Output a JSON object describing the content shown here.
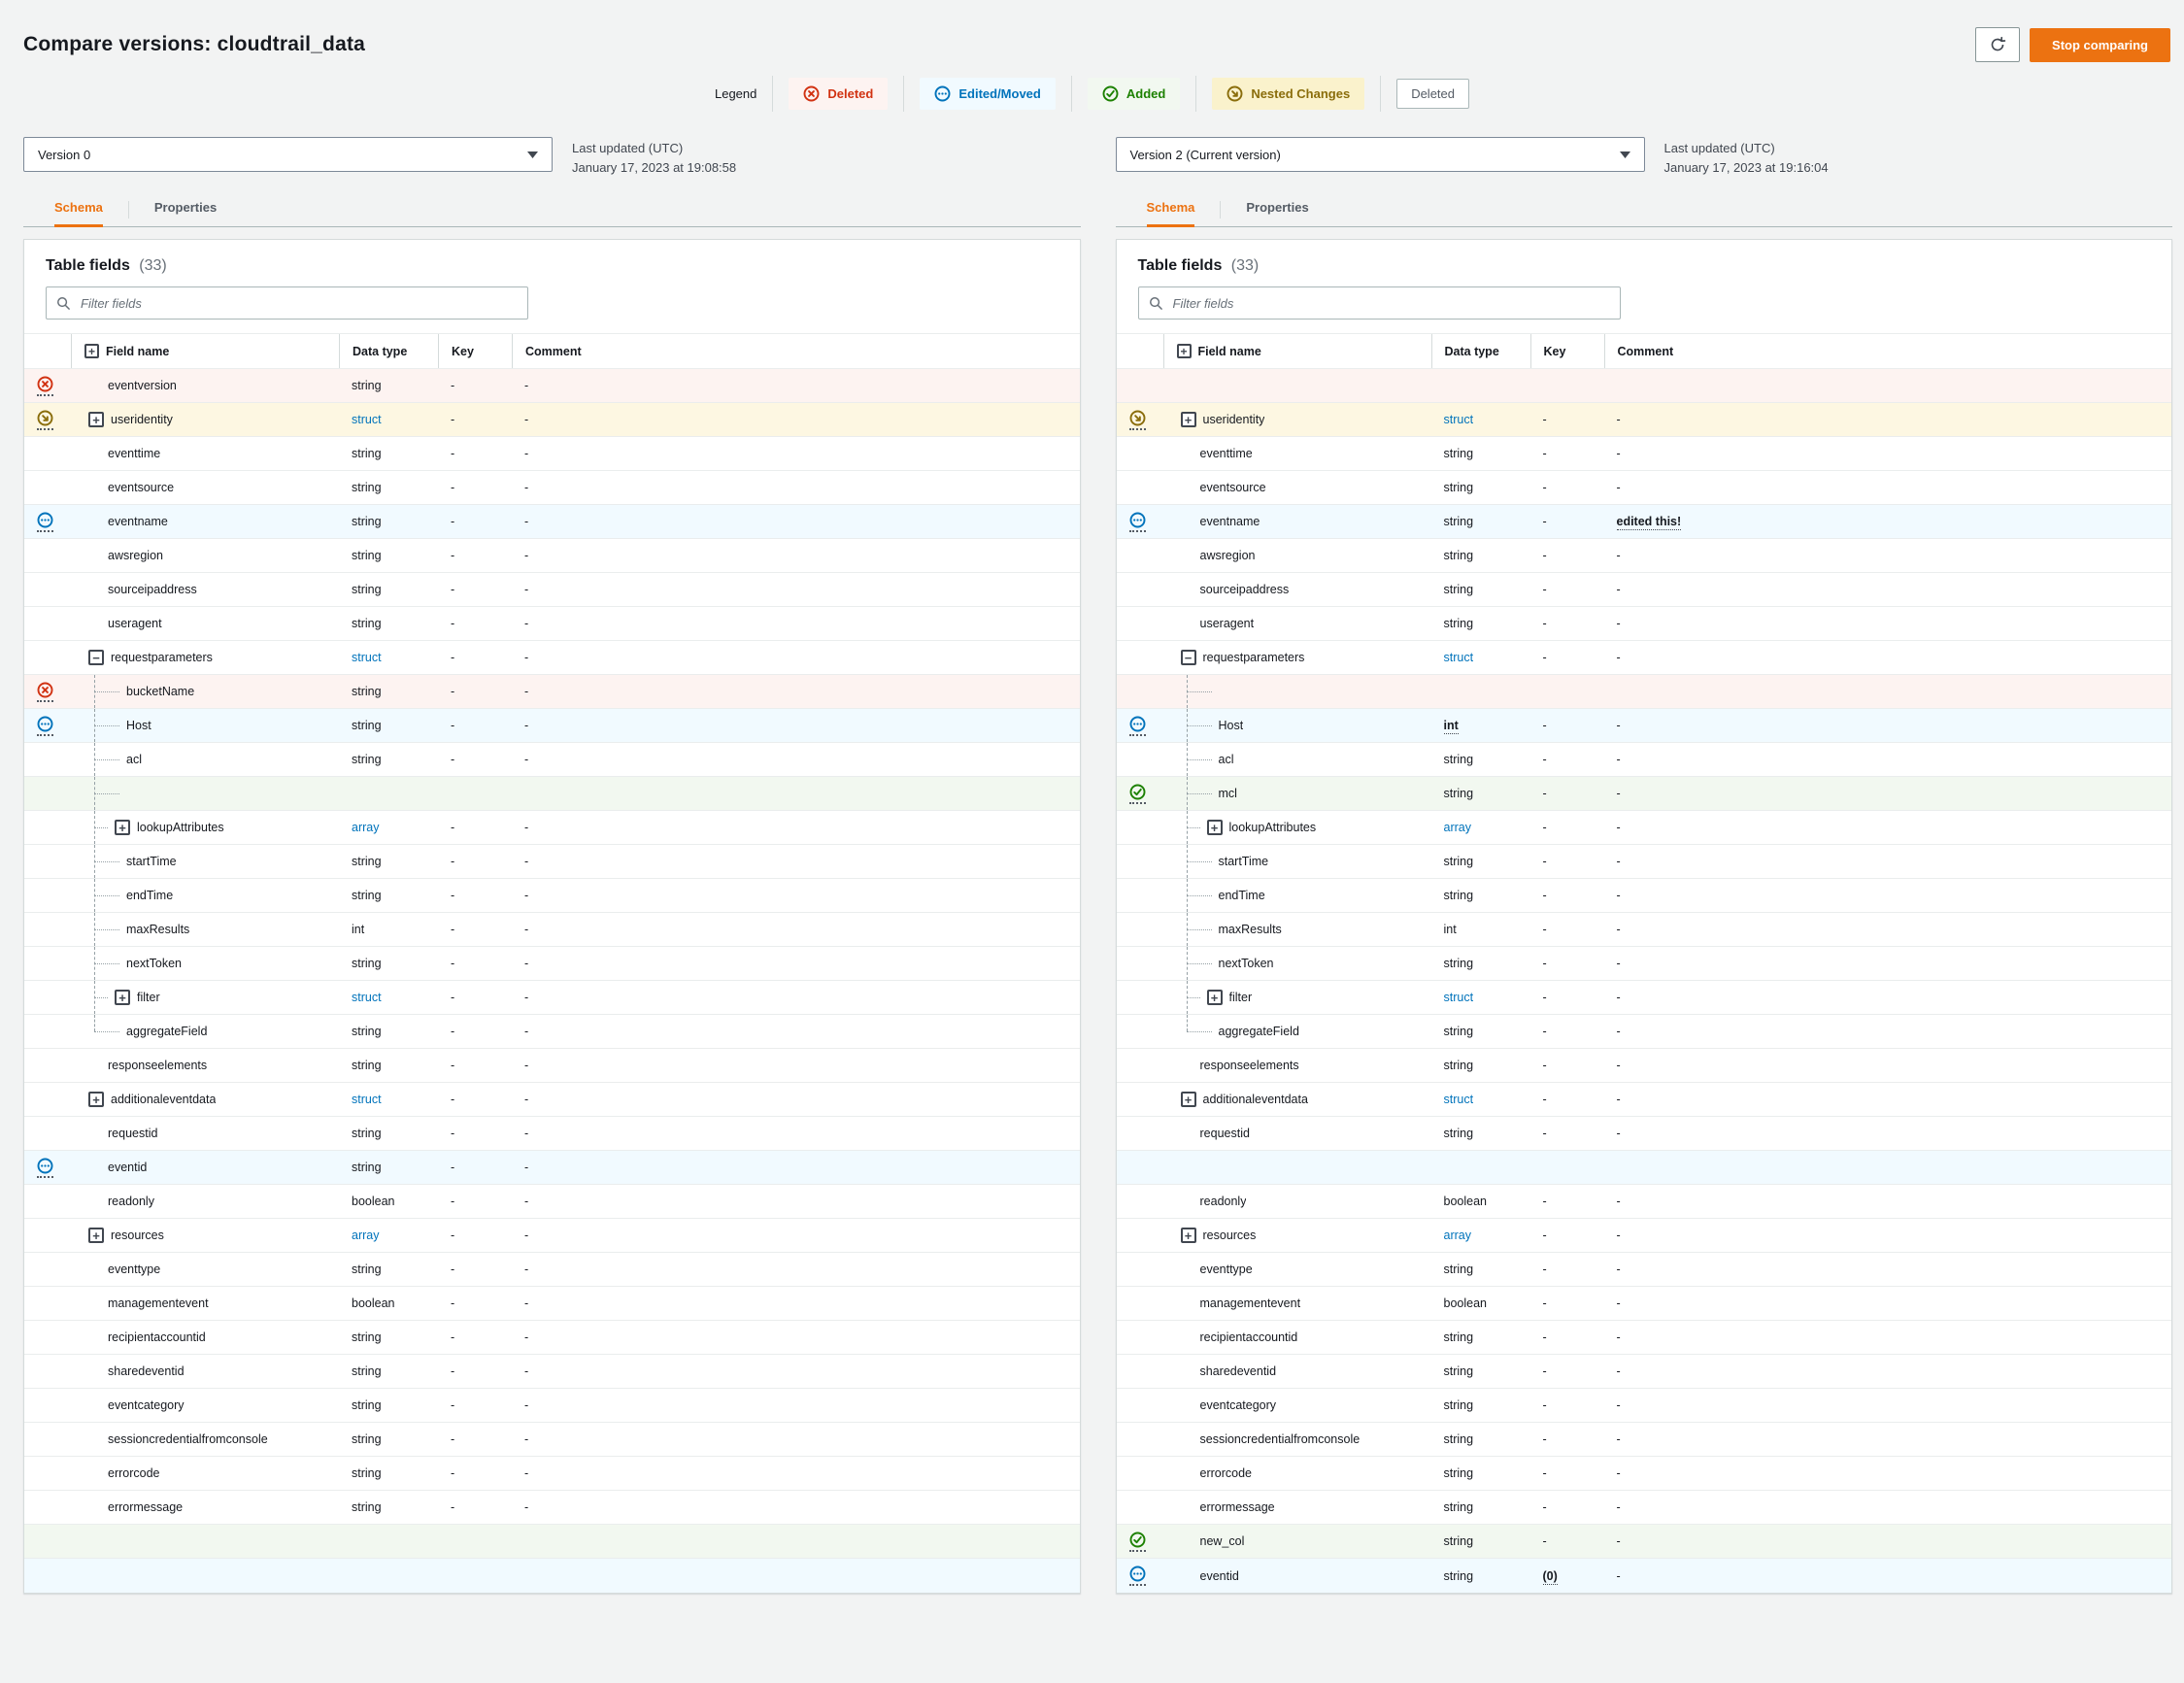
{
  "page": {
    "title": "Compare versions: cloudtrail_data"
  },
  "toolbar": {
    "stop_comparing_label": "Stop comparing"
  },
  "legend": {
    "label": "Legend",
    "items": [
      {
        "id": "deleted",
        "icon": "deleted",
        "label": "Deleted"
      },
      {
        "id": "edited",
        "icon": "edited",
        "label": "Edited/Moved"
      },
      {
        "id": "added",
        "icon": "added",
        "label": "Added"
      },
      {
        "id": "nested",
        "icon": "nested",
        "label": "Nested Changes"
      },
      {
        "id": "deleted-plain",
        "label": "Deleted"
      }
    ]
  },
  "colors": {
    "accent_orange": "#ec7211",
    "deleted": "#d13212",
    "deleted_bg": "#fdf3f1",
    "edited": "#0073bb",
    "edited_bg": "#f1faff",
    "added": "#1d8102",
    "added_bg": "#f2f8f0",
    "nested": "#8a6d0b",
    "nested_bg": "#fdf7e2",
    "link": "#0073bb"
  },
  "columns": {
    "field_name": "Field name",
    "data_type": "Data type",
    "key": "Key",
    "comment": "Comment"
  },
  "panels": [
    {
      "version_label": "Version 0",
      "last_updated_label": "Last updated (UTC)",
      "last_updated_value": "January 17, 2023 at 19:08:58",
      "tabs": [
        {
          "label": "Schema",
          "active": true
        },
        {
          "label": "Properties",
          "active": false
        }
      ],
      "table_title": "Table fields",
      "table_count": "(33)",
      "filter_placeholder": "Filter fields",
      "rows": [
        {
          "name": "eventversion",
          "type": "string",
          "key": "-",
          "comment": "-",
          "status": "deleted",
          "bg": "deleted"
        },
        {
          "name": "useridentity",
          "type": "struct",
          "type_link": true,
          "key": "-",
          "comment": "-",
          "status": "nested",
          "bg": "nested",
          "expander": "plus"
        },
        {
          "name": "eventtime",
          "type": "string",
          "key": "-",
          "comment": "-"
        },
        {
          "name": "eventsource",
          "type": "string",
          "key": "-",
          "comment": "-"
        },
        {
          "name": "eventname",
          "type": "string",
          "key": "-",
          "comment": "-",
          "status": "edited",
          "bg": "edited"
        },
        {
          "name": "awsregion",
          "type": "string",
          "key": "-",
          "comment": "-"
        },
        {
          "name": "sourceipaddress",
          "type": "string",
          "key": "-",
          "comment": "-"
        },
        {
          "name": "useragent",
          "type": "string",
          "key": "-",
          "comment": "-"
        },
        {
          "name": "requestparameters",
          "type": "struct",
          "type_link": true,
          "key": "-",
          "comment": "-",
          "expander": "minus"
        },
        {
          "name": "bucketName",
          "type": "string",
          "key": "-",
          "comment": "-",
          "status": "deleted",
          "bg": "deleted",
          "child": true,
          "tree": true
        },
        {
          "name": "Host",
          "type": "string",
          "key": "-",
          "comment": "-",
          "status": "edited",
          "bg": "edited",
          "child": true,
          "tree": true
        },
        {
          "name": "acl",
          "type": "string",
          "key": "-",
          "comment": "-",
          "child": true,
          "tree": true
        },
        {
          "placeholder": true,
          "bg": "added",
          "child": true,
          "tree": true
        },
        {
          "name": "lookupAttributes",
          "type": "array",
          "type_link": true,
          "key": "-",
          "comment": "-",
          "child": true,
          "tree": true,
          "expander": "plus"
        },
        {
          "name": "startTime",
          "type": "string",
          "key": "-",
          "comment": "-",
          "child": true,
          "tree": true
        },
        {
          "name": "endTime",
          "type": "string",
          "key": "-",
          "comment": "-",
          "child": true,
          "tree": true
        },
        {
          "name": "maxResults",
          "type": "int",
          "key": "-",
          "comment": "-",
          "child": true,
          "tree": true
        },
        {
          "name": "nextToken",
          "type": "string",
          "key": "-",
          "comment": "-",
          "child": true,
          "tree": true
        },
        {
          "name": "filter",
          "type": "struct",
          "type_link": true,
          "key": "-",
          "comment": "-",
          "child": true,
          "tree": true,
          "expander": "plus"
        },
        {
          "name": "aggregateField",
          "type": "string",
          "key": "-",
          "comment": "-",
          "child": true,
          "tree": true,
          "tree_last": true
        },
        {
          "name": "responseelements",
          "type": "string",
          "key": "-",
          "comment": "-"
        },
        {
          "name": "additionaleventdata",
          "type": "struct",
          "type_link": true,
          "key": "-",
          "comment": "-",
          "expander": "plus"
        },
        {
          "name": "requestid",
          "type": "string",
          "key": "-",
          "comment": "-"
        },
        {
          "name": "eventid",
          "type": "string",
          "key": "-",
          "comment": "-",
          "status": "edited",
          "bg": "edited"
        },
        {
          "name": "readonly",
          "type": "boolean",
          "key": "-",
          "comment": "-"
        },
        {
          "name": "resources",
          "type": "array",
          "type_link": true,
          "key": "-",
          "comment": "-",
          "expander": "plus"
        },
        {
          "name": "eventtype",
          "type": "string",
          "key": "-",
          "comment": "-"
        },
        {
          "name": "managementevent",
          "type": "boolean",
          "key": "-",
          "comment": "-"
        },
        {
          "name": "recipientaccountid",
          "type": "string",
          "key": "-",
          "comment": "-"
        },
        {
          "name": "sharedeventid",
          "type": "string",
          "key": "-",
          "comment": "-"
        },
        {
          "name": "eventcategory",
          "type": "string",
          "key": "-",
          "comment": "-"
        },
        {
          "name": "sessioncredentialfromconsole",
          "type": "string",
          "key": "-",
          "comment": "-"
        },
        {
          "name": "errorcode",
          "type": "string",
          "key": "-",
          "comment": "-"
        },
        {
          "name": "errormessage",
          "type": "string",
          "key": "-",
          "comment": "-"
        },
        {
          "placeholder": true,
          "bg": "added"
        },
        {
          "placeholder": true,
          "bg": "edited"
        }
      ]
    },
    {
      "version_label": "Version 2 (Current version)",
      "last_updated_label": "Last updated (UTC)",
      "last_updated_value": "January 17, 2023 at 19:16:04",
      "tabs": [
        {
          "label": "Schema",
          "active": true
        },
        {
          "label": "Properties",
          "active": false
        }
      ],
      "table_title": "Table fields",
      "table_count": "(33)",
      "filter_placeholder": "Filter fields",
      "rows": [
        {
          "placeholder": true,
          "bg": "deleted"
        },
        {
          "name": "useridentity",
          "type": "struct",
          "type_link": true,
          "key": "-",
          "comment": "-",
          "status": "nested",
          "bg": "nested",
          "expander": "plus"
        },
        {
          "name": "eventtime",
          "type": "string",
          "key": "-",
          "comment": "-"
        },
        {
          "name": "eventsource",
          "type": "string",
          "key": "-",
          "comment": "-"
        },
        {
          "name": "eventname",
          "type": "string",
          "key": "-",
          "comment": "edited this!",
          "comment_changed": true,
          "status": "edited",
          "bg": "edited"
        },
        {
          "name": "awsregion",
          "type": "string",
          "key": "-",
          "comment": "-"
        },
        {
          "name": "sourceipaddress",
          "type": "string",
          "key": "-",
          "comment": "-"
        },
        {
          "name": "useragent",
          "type": "string",
          "key": "-",
          "comment": "-"
        },
        {
          "name": "requestparameters",
          "type": "struct",
          "type_link": true,
          "key": "-",
          "comment": "-",
          "expander": "minus"
        },
        {
          "placeholder": true,
          "bg": "deleted",
          "child": true,
          "tree": true
        },
        {
          "name": "Host",
          "type": "int",
          "type_changed": true,
          "key": "-",
          "comment": "-",
          "status": "edited",
          "bg": "edited",
          "child": true,
          "tree": true
        },
        {
          "name": "acl",
          "type": "string",
          "key": "-",
          "comment": "-",
          "child": true,
          "tree": true
        },
        {
          "name": "mcl",
          "type": "string",
          "key": "-",
          "comment": "-",
          "status": "added",
          "bg": "added",
          "child": true,
          "tree": true
        },
        {
          "name": "lookupAttributes",
          "type": "array",
          "type_link": true,
          "key": "-",
          "comment": "-",
          "child": true,
          "tree": true,
          "expander": "plus"
        },
        {
          "name": "startTime",
          "type": "string",
          "key": "-",
          "comment": "-",
          "child": true,
          "tree": true
        },
        {
          "name": "endTime",
          "type": "string",
          "key": "-",
          "comment": "-",
          "child": true,
          "tree": true
        },
        {
          "name": "maxResults",
          "type": "int",
          "key": "-",
          "comment": "-",
          "child": true,
          "tree": true
        },
        {
          "name": "nextToken",
          "type": "string",
          "key": "-",
          "comment": "-",
          "child": true,
          "tree": true
        },
        {
          "name": "filter",
          "type": "struct",
          "type_link": true,
          "key": "-",
          "comment": "-",
          "child": true,
          "tree": true,
          "expander": "plus"
        },
        {
          "name": "aggregateField",
          "type": "string",
          "key": "-",
          "comment": "-",
          "child": true,
          "tree": true,
          "tree_last": true
        },
        {
          "name": "responseelements",
          "type": "string",
          "key": "-",
          "comment": "-"
        },
        {
          "name": "additionaleventdata",
          "type": "struct",
          "type_link": true,
          "key": "-",
          "comment": "-",
          "expander": "plus"
        },
        {
          "name": "requestid",
          "type": "string",
          "key": "-",
          "comment": "-"
        },
        {
          "placeholder": true,
          "bg": "edited"
        },
        {
          "name": "readonly",
          "type": "boolean",
          "key": "-",
          "comment": "-"
        },
        {
          "name": "resources",
          "type": "array",
          "type_link": true,
          "key": "-",
          "comment": "-",
          "expander": "plus"
        },
        {
          "name": "eventtype",
          "type": "string",
          "key": "-",
          "comment": "-"
        },
        {
          "name": "managementevent",
          "type": "boolean",
          "key": "-",
          "comment": "-"
        },
        {
          "name": "recipientaccountid",
          "type": "string",
          "key": "-",
          "comment": "-"
        },
        {
          "name": "sharedeventid",
          "type": "string",
          "key": "-",
          "comment": "-"
        },
        {
          "name": "eventcategory",
          "type": "string",
          "key": "-",
          "comment": "-"
        },
        {
          "name": "sessioncredentialfromconsole",
          "type": "string",
          "key": "-",
          "comment": "-"
        },
        {
          "name": "errorcode",
          "type": "string",
          "key": "-",
          "comment": "-"
        },
        {
          "name": "errormessage",
          "type": "string",
          "key": "-",
          "comment": "-"
        },
        {
          "name": "new_col",
          "type": "string",
          "key": "-",
          "comment": "-",
          "status": "added",
          "bg": "added"
        },
        {
          "name": "eventid",
          "type": "string",
          "key": "(0)",
          "key_changed": true,
          "comment": "-",
          "status": "edited",
          "bg": "edited"
        }
      ]
    }
  ]
}
